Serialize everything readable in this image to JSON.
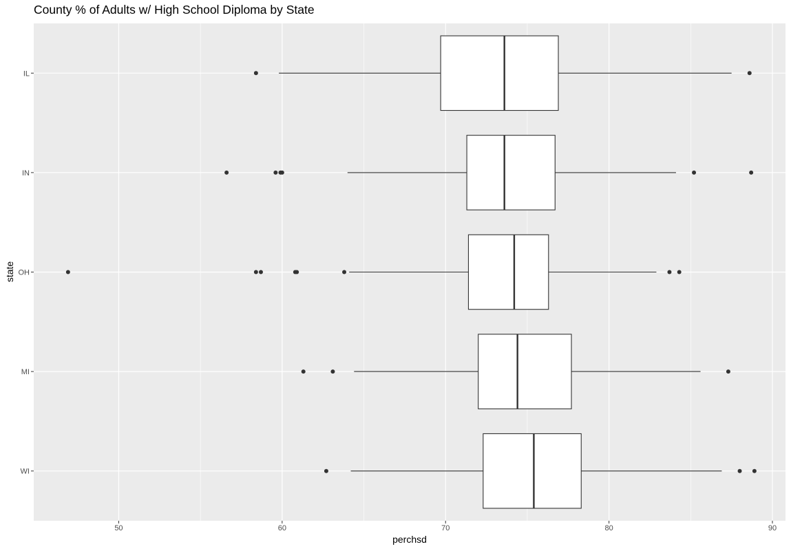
{
  "chart_data": {
    "type": "boxplot",
    "orientation": "horizontal",
    "title": "County % of Adults w/ High School Diploma by State",
    "xlabel": "perchsd",
    "ylabel": "state",
    "xlim": [
      44.8,
      90.8
    ],
    "xticks": [
      50,
      60,
      70,
      80,
      90
    ],
    "categories": [
      "IL",
      "IN",
      "OH",
      "MI",
      "WI"
    ],
    "grid": true,
    "colors": {
      "panel": "#EBEBEB",
      "grid_major": "#FFFFFF",
      "box_fill": "#FFFFFF",
      "line": "#333333"
    },
    "boxes": [
      {
        "name": "IL",
        "whisker_low": 59.8,
        "q1": 69.7,
        "median": 73.6,
        "q3": 76.9,
        "whisker_high": 87.5,
        "outliers": [
          58.4,
          88.6
        ]
      },
      {
        "name": "IN",
        "whisker_low": 64.0,
        "q1": 71.3,
        "median": 73.6,
        "q3": 76.7,
        "whisker_high": 84.1,
        "outliers": [
          56.6,
          59.6,
          59.9,
          60.0,
          85.2,
          88.7
        ]
      },
      {
        "name": "OH",
        "whisker_low": 64.1,
        "q1": 71.4,
        "median": 74.2,
        "q3": 76.3,
        "whisker_high": 82.9,
        "outliers": [
          46.9,
          58.4,
          58.7,
          60.8,
          60.9,
          63.8,
          83.7,
          84.3
        ]
      },
      {
        "name": "MI",
        "whisker_low": 64.4,
        "q1": 72.0,
        "median": 74.4,
        "q3": 77.7,
        "whisker_high": 85.6,
        "outliers": [
          61.3,
          63.1,
          87.3
        ]
      },
      {
        "name": "WI",
        "whisker_low": 64.2,
        "q1": 72.3,
        "median": 75.4,
        "q3": 78.3,
        "whisker_high": 86.9,
        "outliers": [
          62.7,
          88.0,
          88.9
        ]
      }
    ]
  }
}
